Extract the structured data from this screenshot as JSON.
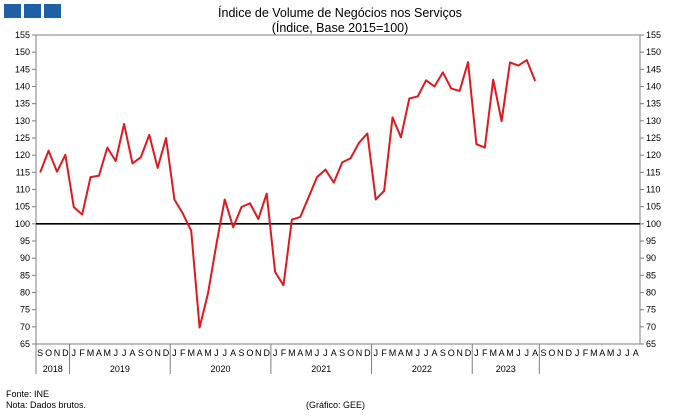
{
  "header": {
    "logo_colors": [
      "#1f5fa6",
      "#1f5fa6",
      "#1f5fa6"
    ]
  },
  "chart_data": {
    "type": "line",
    "title": "Índice de Volume de Negócios nos Serviços",
    "subtitle": "(Índice, Base 2015=100)",
    "xlabel": "",
    "ylabel": "",
    "ylim": [
      65,
      155
    ],
    "ytick_step": 5,
    "dual_y_axis": true,
    "reference_line": 100,
    "grid": false,
    "line_color": "#e0191f",
    "month_labels": [
      "S",
      "O",
      "N",
      "D",
      "J",
      "F",
      "M",
      "A",
      "M",
      "J",
      "J",
      "A",
      "S",
      "O",
      "N",
      "D",
      "J",
      "F",
      "M",
      "A",
      "M",
      "J",
      "J",
      "A",
      "S",
      "O",
      "N",
      "D",
      "J",
      "F",
      "M",
      "A",
      "M",
      "J",
      "J",
      "A",
      "S",
      "O",
      "N",
      "D",
      "J",
      "F",
      "M",
      "A",
      "M",
      "J",
      "J",
      "A",
      "S",
      "O",
      "N",
      "D",
      "J",
      "F",
      "M",
      "A",
      "M",
      "J",
      "J",
      "A",
      "S",
      "O",
      "N",
      "D",
      "J",
      "F",
      "M",
      "A",
      "M",
      "J",
      "J",
      "A"
    ],
    "year_groups": [
      {
        "label": "2018",
        "start": 0,
        "count": 4
      },
      {
        "label": "2019",
        "start": 4,
        "count": 12
      },
      {
        "label": "2020",
        "start": 16,
        "count": 12
      },
      {
        "label": "2021",
        "start": 28,
        "count": 12
      },
      {
        "label": "2022",
        "start": 40,
        "count": 12
      },
      {
        "label": "2023",
        "start": 52,
        "count": 8
      }
    ],
    "series": [
      {
        "values": [
          115.0,
          121.3,
          115.2,
          120.1,
          104.9,
          102.7,
          113.6,
          114.0,
          122.2,
          118.3,
          129.1,
          117.6,
          119.4,
          125.9,
          116.3,
          125.0,
          107.1,
          103.0,
          98.0,
          69.8,
          79.7,
          94.0,
          107.1,
          99.0,
          104.9,
          106.0,
          101.4,
          108.8,
          86.0,
          82.1,
          101.2,
          102.0,
          107.8,
          113.6,
          115.8,
          112.0,
          117.9,
          119.1,
          123.6,
          126.3,
          107.1,
          109.6,
          131.0,
          125.2,
          136.5,
          137.1,
          141.8,
          140.0,
          144.1,
          139.4,
          138.7,
          147.1,
          123.2,
          122.2,
          142.0,
          129.9,
          147.0,
          146.1,
          147.7,
          141.6
        ]
      }
    ]
  },
  "footer": {
    "source": "Fonte: INE",
    "note": "Nota: Dados brutos.",
    "credit": "(Gráfico: GEE)"
  }
}
